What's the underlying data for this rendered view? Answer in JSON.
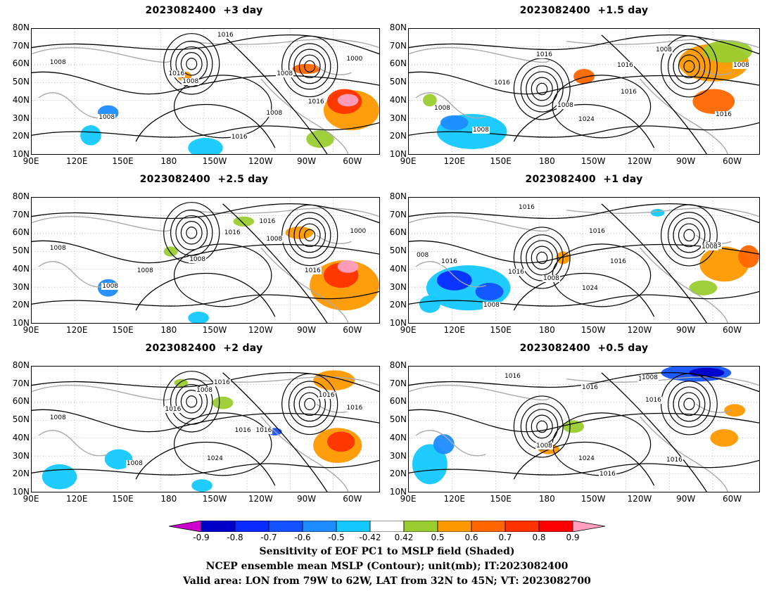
{
  "panels": [
    {
      "title": "2023082400  +3 day",
      "contour_labels": [
        "1016",
        "1008",
        "1016",
        "1008",
        "1000",
        "1008",
        "1016",
        "1008",
        "1008",
        "1016"
      ]
    },
    {
      "title": "2023082400  +1.5 day",
      "contour_labels": [
        "1016",
        "1008",
        "1016",
        "1016",
        "1016",
        "1008",
        "1008",
        "1024",
        "1008",
        "1008",
        "1016"
      ]
    },
    {
      "title": "2023082400  +2.5 day",
      "contour_labels": [
        "1016",
        "1008",
        "1016",
        "1008",
        "1000",
        "1008",
        "1016",
        "1008",
        "1008"
      ]
    },
    {
      "title": "2023082400  +1 day",
      "contour_labels": [
        "1016",
        "1016",
        "008",
        "1016",
        "1008",
        "1016",
        "1016",
        "1008",
        "1024",
        "1008",
        "1008"
      ]
    },
    {
      "title": "2023082400  +2 day",
      "contour_labels": [
        "1016",
        "1008",
        "1016",
        "1016",
        "1016",
        "1008",
        "1016",
        "1008",
        "1024",
        "1016"
      ]
    },
    {
      "title": "2023082400  +0.5 day",
      "contour_labels": [
        "1016",
        "1008",
        "1016",
        "1016",
        "1008",
        "1008",
        "1024",
        "1016",
        "1016"
      ]
    }
  ],
  "lat_ticks": [
    "80N",
    "70N",
    "60N",
    "50N",
    "40N",
    "30N",
    "20N",
    "10N"
  ],
  "lon_ticks": [
    "90E",
    "120E",
    "150E",
    "180",
    "150W",
    "120W",
    "90W",
    "60W"
  ],
  "colorbar": {
    "labels": [
      "-0.9",
      "-0.8",
      "-0.7",
      "-0.6",
      "-0.5",
      "-0.42",
      "0.42",
      "0.5",
      "0.6",
      "0.7",
      "0.8",
      "0.9"
    ],
    "colors": [
      "#cc00cc",
      "#0000c8",
      "#0a2bff",
      "#1452ff",
      "#1e8cff",
      "#14c8ff",
      "#ffffff",
      "#9acd32",
      "#ff9900",
      "#ff6600",
      "#ff3300",
      "#ff0000",
      "#ffa0c0"
    ]
  },
  "footer": {
    "line1": "Sensitivity of EOF PC1 to MSLP field (Shaded)",
    "line2": "NCEP ensemble mean MSLP (Contour); unit(mb); IT:2023082400",
    "line3": "Valid area: LON from 79W to 62W, LAT from 32N to 45N; VT: 2023082700"
  }
}
